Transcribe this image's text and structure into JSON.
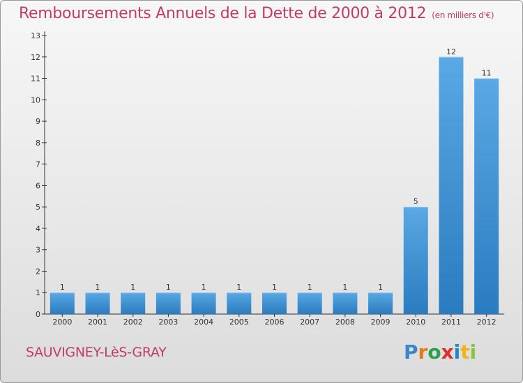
{
  "header": {
    "title": "Remboursements Annuels de la Dette de 2000 à 2012",
    "subtitle": "(en milliers d'€)"
  },
  "footer": {
    "commune": "SAUVIGNEY-LèS-GRAY",
    "logo_text": "Proxiti"
  },
  "colors": {
    "title": "#c03c64",
    "bar_light": "#5aa8e4",
    "bar_dark": "#2a7cc0"
  },
  "chart_data": {
    "type": "bar",
    "title": "Remboursements Annuels de la Dette de 2000 à 2012",
    "subtitle": "(en milliers d'€)",
    "categories": [
      "2000",
      "2001",
      "2002",
      "2003",
      "2004",
      "2005",
      "2006",
      "2007",
      "2008",
      "2009",
      "2010",
      "2011",
      "2012"
    ],
    "values": [
      1,
      1,
      1,
      1,
      1,
      1,
      1,
      1,
      1,
      1,
      5,
      12,
      11
    ],
    "data_labels": [
      "1",
      "1",
      "1",
      "1",
      "1",
      "1",
      "1",
      "1",
      "1",
      "1",
      "5",
      "12",
      "11"
    ],
    "yticks": [
      0,
      1,
      2,
      3,
      4,
      5,
      6,
      7,
      8,
      9,
      10,
      11,
      12,
      13
    ],
    "ylim": [
      0,
      13
    ],
    "grid": false,
    "legend": "none"
  }
}
